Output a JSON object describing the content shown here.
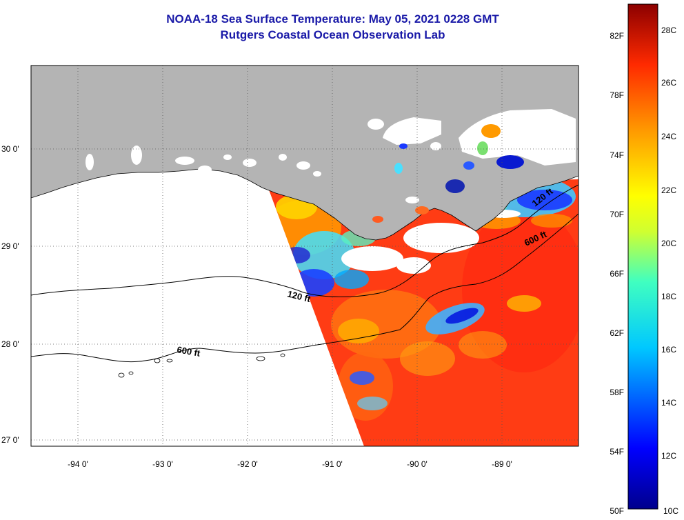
{
  "title": {
    "line1": "NOAA-18 Sea Surface Temperature:  May 05, 2021 0228 GMT",
    "line2": "Rutgers Coastal Ocean Observation Lab"
  },
  "map": {
    "lat_labels": [
      "30 0'",
      "29 0'",
      "28 0'",
      "27 0'"
    ],
    "lon_labels": [
      "-94 0'",
      "-93 0'",
      "-92 0'",
      "-91 0'",
      "-90 0'",
      "-89 0'"
    ],
    "contour_labels": [
      "120 ft",
      "600 ft",
      "600 ft",
      "120 ft"
    ]
  },
  "colorbar": {
    "fahrenheit": [
      "82F",
      "78F",
      "74F",
      "70F",
      "66F",
      "62F",
      "58F",
      "54F",
      "50F"
    ],
    "celsius": [
      "28C",
      "26C",
      "24C",
      "22C",
      "20C",
      "18C",
      "16C",
      "14C",
      "12C",
      "10C"
    ]
  },
  "colors": {
    "title": "#1a1aa8",
    "land": "#b4b4b4",
    "warm": "#ff3a14",
    "cold": "#00008c"
  }
}
